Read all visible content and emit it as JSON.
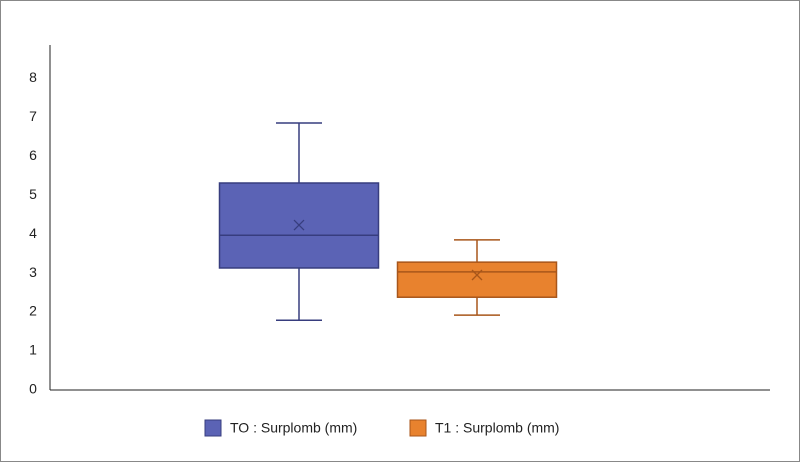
{
  "chart_data": {
    "type": "boxplot",
    "series": [
      {
        "name": "TO : Surplomb (mm)",
        "color": "#5b63b5",
        "stroke": "#373d7e",
        "min": 1.79,
        "q1": 3.13,
        "median": 3.97,
        "q3": 5.31,
        "max": 6.85,
        "mean": 4.23
      },
      {
        "name": "T1 : Surplomb (mm)",
        "color": "#e8822e",
        "stroke": "#a8561a",
        "min": 1.92,
        "q1": 2.38,
        "median": 3.03,
        "q3": 3.28,
        "max": 3.85,
        "mean": 2.95
      }
    ],
    "ylim": [
      0,
      8.85
    ],
    "yticks": [
      0,
      1,
      2,
      3,
      4,
      5,
      6,
      7,
      8
    ],
    "grid": false
  }
}
